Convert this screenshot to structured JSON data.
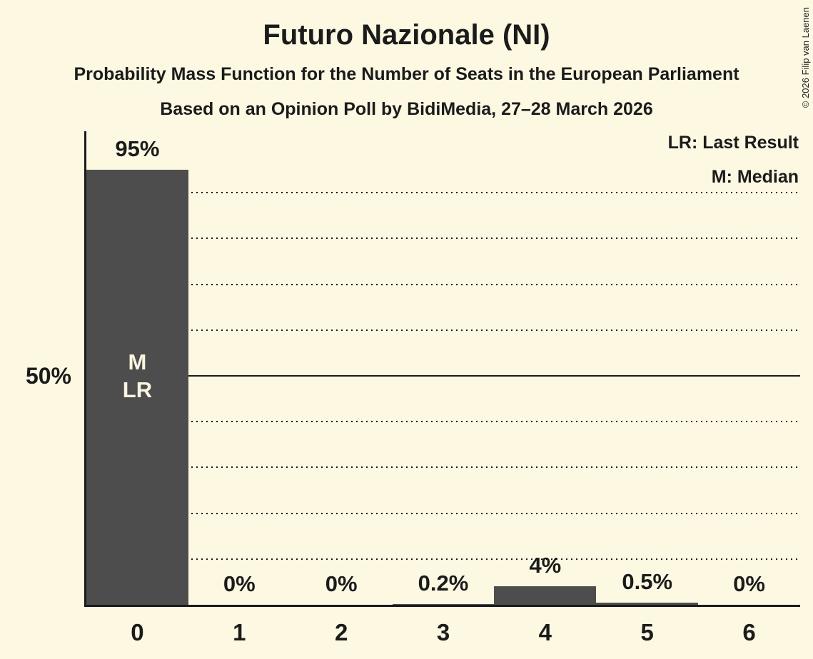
{
  "title": "Futuro Nazionale (NI)",
  "subtitle1": "Probability Mass Function for the Number of Seats in the European Parliament",
  "subtitle2": "Based on an Opinion Poll by BidiMedia, 27–28 March 2026",
  "copyright": "© 2026 Filip van Laenen",
  "legend": {
    "lr": "LR: Last Result",
    "m": "M: Median"
  },
  "y_axis_label": "50%",
  "colors": {
    "background": "#FCF8E2",
    "bar": "#4D4D4D",
    "text": "#1B1B1B",
    "bar_annotation_text": "#F9F5DE"
  },
  "chart_data": {
    "type": "bar",
    "title": "Futuro Nazionale (NI)",
    "categories": [
      "0",
      "1",
      "2",
      "3",
      "4",
      "5",
      "6"
    ],
    "values": [
      95,
      0,
      0,
      0.2,
      4,
      0.5,
      0
    ],
    "value_labels": [
      "95%",
      "0%",
      "0%",
      "0.2%",
      "4%",
      "0.5%",
      "0%"
    ],
    "ylim": [
      0,
      103
    ],
    "gridlines": {
      "dotted_pct": [
        10,
        20,
        30,
        40,
        60,
        70,
        80,
        90
      ],
      "solid_pct": [
        50
      ]
    },
    "y_reference": {
      "pct": 50,
      "label": "50%"
    },
    "legend_position": "top-right",
    "annotations": [
      {
        "category": "0",
        "lines": [
          "M",
          "LR"
        ]
      }
    ]
  }
}
